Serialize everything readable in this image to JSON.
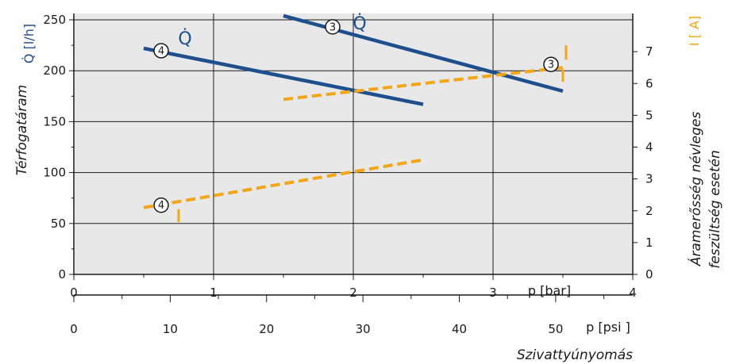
{
  "chart_data": {
    "type": "line",
    "x_axis_bar": {
      "unit_label": "p  [bar]",
      "range": [
        0,
        4
      ],
      "ticks": [
        0,
        1,
        2,
        3,
        4
      ]
    },
    "x_axis_psi": {
      "unit_label": "p  [psi ]",
      "range": [
        0,
        58.0
      ],
      "ticks": [
        0,
        10,
        20,
        30,
        40,
        50
      ]
    },
    "x_title": "Szivattyúnyomás",
    "y_left": {
      "title": "Térfogatáram",
      "unit_label": "Q̇  [l/h]",
      "range": [
        0,
        250
      ],
      "ticks": [
        0,
        50,
        100,
        150,
        200,
        250
      ]
    },
    "y_right": {
      "title_line1": "Áramerősség névleges",
      "title_line2": "feszültség esetén",
      "unit_label": "I  [ A]",
      "range": [
        0,
        8
      ],
      "ticks": [
        0,
        1,
        2,
        3,
        4,
        5,
        6,
        7
      ]
    },
    "grid": true,
    "series": [
      {
        "axis": "left",
        "marker": "4",
        "symbol": "Q̇",
        "color": "#1f4e8c",
        "dash": false,
        "x": [
          0.5,
          2.5
        ],
        "y": [
          222,
          167
        ]
      },
      {
        "axis": "left",
        "marker": "3",
        "symbol": "Q̇",
        "color": "#1f4e8c",
        "dash": false,
        "x": [
          1.5,
          3.5
        ],
        "y": [
          254,
          180
        ]
      },
      {
        "axis": "right",
        "marker": "4",
        "color": "#f2a516",
        "dash": true,
        "x": [
          0.5,
          2.5
        ],
        "y": [
          2.1,
          3.6
        ]
      },
      {
        "axis": "right",
        "marker": "3",
        "color": "#f2a516",
        "dash": true,
        "x": [
          1.5,
          3.5
        ],
        "y": [
          5.5,
          6.5
        ]
      }
    ],
    "nominal_ticks": [
      {
        "marker": "4",
        "x": 0.75,
        "y": 2.1
      },
      {
        "marker": "3",
        "x": 3.5,
        "y": 6.5
      }
    ]
  }
}
